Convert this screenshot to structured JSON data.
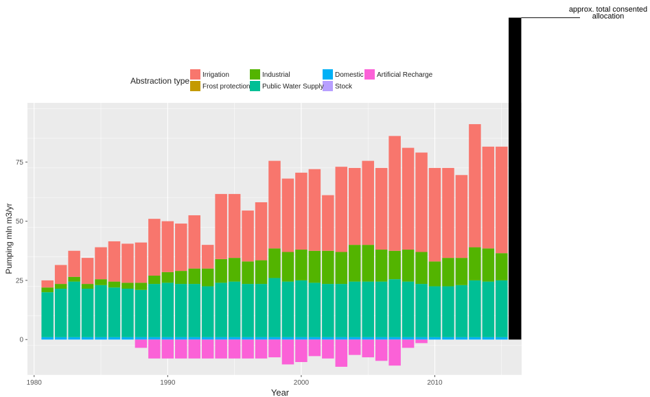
{
  "chart_data": {
    "type": "bar",
    "stacked": true,
    "title": "",
    "xlabel": "Year",
    "ylabel": "Pumping mln m3/yr",
    "xlim": [
      1979.5,
      2016.5
    ],
    "ylim": [
      -15,
      100
    ],
    "x_ticks": [
      1980,
      1990,
      2000,
      2010
    ],
    "y_ticks": [
      0,
      25,
      50,
      75
    ],
    "grid": true,
    "legend_title": "Abstraction type",
    "legend_position": "top",
    "annotation": "approx. total consented allocation",
    "allocation_bar": {
      "year": 2016,
      "value": 136
    },
    "years": [
      1981,
      1982,
      1983,
      1984,
      1985,
      1986,
      1987,
      1988,
      1989,
      1990,
      1991,
      1992,
      1993,
      1994,
      1995,
      1996,
      1997,
      1998,
      1999,
      2000,
      2001,
      2002,
      2003,
      2004,
      2005,
      2006,
      2007,
      2008,
      2009,
      2010,
      2011,
      2012,
      2013,
      2014,
      2015
    ],
    "series": [
      {
        "name": "Domestic",
        "color": "#00b0f6",
        "values": [
          1,
          1,
          1,
          1,
          1,
          1,
          1,
          1,
          1,
          1,
          1,
          1,
          1,
          1,
          1,
          1,
          1,
          1,
          1,
          1,
          1,
          1,
          1,
          1,
          1,
          1,
          1,
          1,
          1,
          1,
          1,
          1,
          1,
          1,
          1
        ]
      },
      {
        "name": "Stock",
        "color": "#b79fff",
        "values": [
          0,
          0,
          0,
          0,
          0,
          0,
          0,
          0,
          0,
          0,
          0,
          0,
          0,
          0,
          0,
          0,
          0,
          0,
          0,
          0,
          0,
          0,
          0,
          0,
          0,
          0,
          0,
          0,
          0,
          0,
          0,
          0,
          0,
          0,
          0
        ]
      },
      {
        "name": "Public Water Supply",
        "color": "#00bf95",
        "values": [
          19,
          20.5,
          23.5,
          20.5,
          22,
          21,
          20.5,
          20,
          22.5,
          23,
          22.5,
          22.5,
          21.5,
          23,
          23.5,
          22.5,
          22.5,
          25,
          23.5,
          24,
          23,
          22.5,
          22.5,
          23.5,
          23.5,
          23.5,
          24.5,
          23.5,
          22.5,
          21.5,
          21.5,
          22,
          24,
          23.5,
          24
        ]
      },
      {
        "name": "Frost protection",
        "color": "#c49a00",
        "values": [
          0,
          0,
          0,
          0,
          0,
          0,
          0,
          0,
          0,
          0,
          0,
          0,
          0,
          0,
          0,
          0,
          0,
          0,
          0,
          0,
          0,
          0,
          0,
          0,
          0,
          0,
          0,
          0,
          0,
          0,
          0,
          0,
          0,
          0,
          0
        ]
      },
      {
        "name": "Industrial",
        "color": "#53b400",
        "values": [
          2,
          2,
          2,
          2,
          2.5,
          2.5,
          2.5,
          3,
          3.5,
          4.5,
          5.5,
          6.5,
          7.5,
          10,
          10,
          9.5,
          10,
          12.5,
          12.5,
          13,
          13.5,
          14,
          13.5,
          15.5,
          15.5,
          13.5,
          12,
          13.5,
          13.5,
          10.5,
          12,
          11.5,
          14,
          14,
          11.5
        ]
      },
      {
        "name": "Irrigation",
        "color": "#f8766d",
        "values": [
          3,
          8,
          11,
          11,
          13.5,
          17,
          16.5,
          17,
          24,
          21.5,
          20,
          22.5,
          10,
          27.5,
          27,
          21.5,
          24.5,
          37,
          31,
          32.5,
          34.5,
          23.5,
          36,
          32.5,
          35.5,
          34.5,
          48.5,
          43,
          42,
          39.5,
          38,
          35,
          52,
          43,
          45
        ]
      },
      {
        "name": "Artificial Recharge",
        "color": "#fb61d7",
        "values": [
          0,
          0,
          0,
          0,
          0,
          0,
          0,
          -3.5,
          -8,
          -8,
          -8,
          -8,
          -8,
          -8,
          -8,
          -8,
          -8,
          -7.5,
          -10.5,
          -9.5,
          -7,
          -8,
          -11.5,
          -6.5,
          -7.5,
          -9,
          -11,
          -3.5,
          -1.5,
          0,
          0,
          0,
          0,
          0,
          0
        ]
      }
    ]
  }
}
